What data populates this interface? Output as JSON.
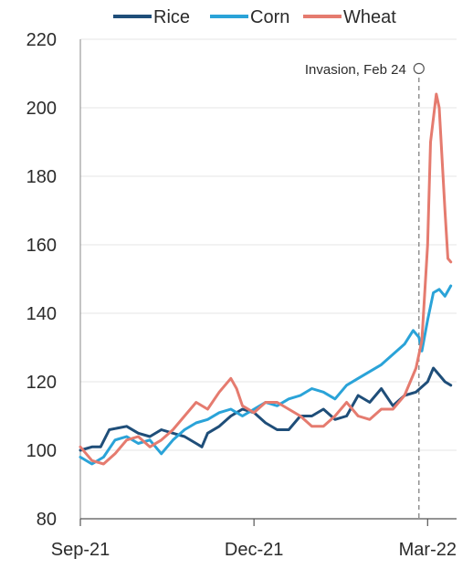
{
  "chart_data": {
    "type": "line",
    "title": "",
    "xlabel": "",
    "ylabel": "",
    "ylim": [
      80,
      220
    ],
    "yticks": [
      80,
      100,
      120,
      140,
      160,
      180,
      200,
      220
    ],
    "xticks": [
      {
        "value": 0,
        "label": "Sep-21"
      },
      {
        "value": 3,
        "label": "Dec-21"
      },
      {
        "value": 6,
        "label": "Mar-22"
      }
    ],
    "xlim": [
      0,
      6.5
    ],
    "grid": "horizontal",
    "legend_position": "top",
    "annotation": {
      "label": "Invasion, Feb 24",
      "x": 5.85
    },
    "series": [
      {
        "name": "Rice",
        "color": "#1f4e79",
        "points": [
          [
            0.0,
            100
          ],
          [
            0.2,
            101
          ],
          [
            0.35,
            101
          ],
          [
            0.5,
            106
          ],
          [
            0.8,
            107
          ],
          [
            1.0,
            105
          ],
          [
            1.2,
            104
          ],
          [
            1.4,
            106
          ],
          [
            1.6,
            105
          ],
          [
            1.8,
            104
          ],
          [
            2.0,
            102
          ],
          [
            2.1,
            101
          ],
          [
            2.2,
            105
          ],
          [
            2.4,
            107
          ],
          [
            2.6,
            110
          ],
          [
            2.8,
            112
          ],
          [
            3.0,
            111
          ],
          [
            3.2,
            108
          ],
          [
            3.4,
            106
          ],
          [
            3.6,
            106
          ],
          [
            3.8,
            110
          ],
          [
            4.0,
            110
          ],
          [
            4.2,
            112
          ],
          [
            4.4,
            109
          ],
          [
            4.6,
            110
          ],
          [
            4.8,
            116
          ],
          [
            5.0,
            114
          ],
          [
            5.2,
            118
          ],
          [
            5.4,
            113
          ],
          [
            5.6,
            116
          ],
          [
            5.8,
            117
          ],
          [
            6.0,
            120
          ],
          [
            6.1,
            124
          ],
          [
            6.2,
            122
          ],
          [
            6.3,
            120
          ],
          [
            6.4,
            119
          ]
        ]
      },
      {
        "name": "Corn",
        "color": "#2aa3d8",
        "points": [
          [
            0.0,
            98
          ],
          [
            0.2,
            96
          ],
          [
            0.4,
            98
          ],
          [
            0.6,
            103
          ],
          [
            0.8,
            104
          ],
          [
            1.0,
            102
          ],
          [
            1.2,
            103
          ],
          [
            1.4,
            99
          ],
          [
            1.6,
            103
          ],
          [
            1.8,
            106
          ],
          [
            2.0,
            108
          ],
          [
            2.2,
            109
          ],
          [
            2.4,
            111
          ],
          [
            2.6,
            112
          ],
          [
            2.8,
            110
          ],
          [
            3.0,
            112
          ],
          [
            3.2,
            114
          ],
          [
            3.4,
            113
          ],
          [
            3.6,
            115
          ],
          [
            3.8,
            116
          ],
          [
            4.0,
            118
          ],
          [
            4.2,
            117
          ],
          [
            4.4,
            115
          ],
          [
            4.6,
            119
          ],
          [
            4.8,
            121
          ],
          [
            5.0,
            123
          ],
          [
            5.2,
            125
          ],
          [
            5.4,
            128
          ],
          [
            5.6,
            131
          ],
          [
            5.75,
            135
          ],
          [
            5.85,
            133
          ],
          [
            5.9,
            129
          ],
          [
            6.0,
            138
          ],
          [
            6.1,
            146
          ],
          [
            6.2,
            147
          ],
          [
            6.3,
            145
          ],
          [
            6.4,
            148
          ]
        ]
      },
      {
        "name": "Wheat",
        "color": "#e57b6f",
        "points": [
          [
            0.0,
            101
          ],
          [
            0.2,
            97
          ],
          [
            0.4,
            96
          ],
          [
            0.6,
            99
          ],
          [
            0.8,
            103
          ],
          [
            1.0,
            104
          ],
          [
            1.2,
            101
          ],
          [
            1.4,
            103
          ],
          [
            1.6,
            106
          ],
          [
            1.8,
            110
          ],
          [
            2.0,
            114
          ],
          [
            2.2,
            112
          ],
          [
            2.4,
            117
          ],
          [
            2.6,
            121
          ],
          [
            2.7,
            118
          ],
          [
            2.8,
            113
          ],
          [
            3.0,
            111
          ],
          [
            3.2,
            114
          ],
          [
            3.4,
            114
          ],
          [
            3.6,
            112
          ],
          [
            3.8,
            110
          ],
          [
            4.0,
            107
          ],
          [
            4.2,
            107
          ],
          [
            4.4,
            110
          ],
          [
            4.6,
            114
          ],
          [
            4.8,
            110
          ],
          [
            5.0,
            109
          ],
          [
            5.2,
            112
          ],
          [
            5.4,
            112
          ],
          [
            5.6,
            116
          ],
          [
            5.8,
            124
          ],
          [
            5.9,
            132
          ],
          [
            6.0,
            160
          ],
          [
            6.05,
            190
          ],
          [
            6.15,
            204
          ],
          [
            6.2,
            200
          ],
          [
            6.3,
            170
          ],
          [
            6.35,
            156
          ],
          [
            6.4,
            155
          ]
        ]
      }
    ]
  }
}
